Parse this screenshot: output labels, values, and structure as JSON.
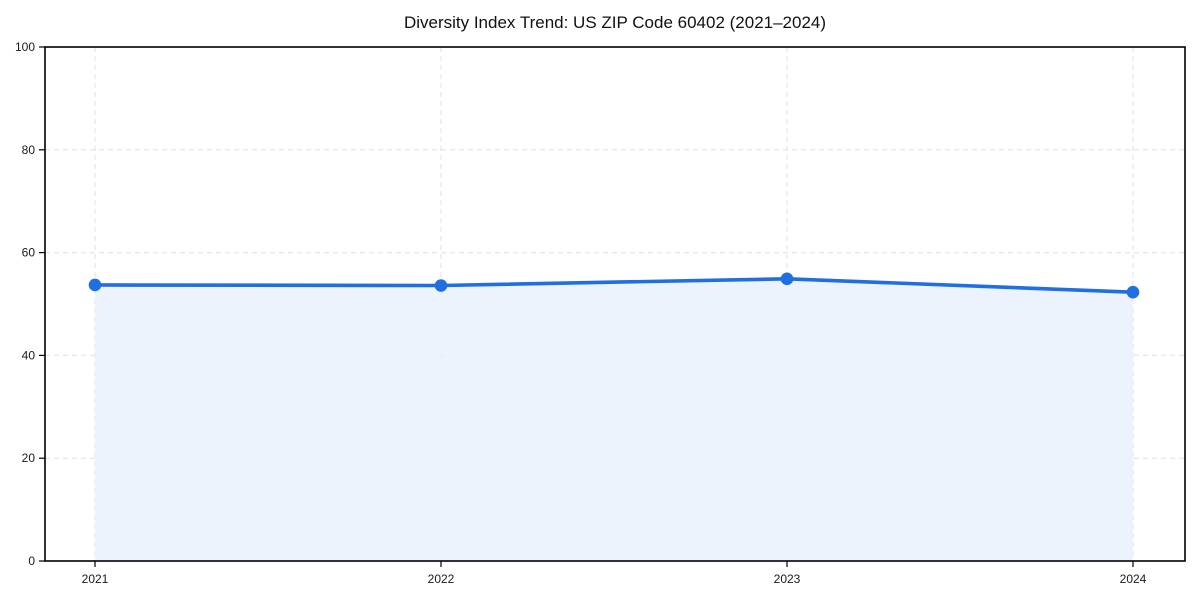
{
  "page": {
    "background_color": "#ffffff"
  },
  "chart_data": {
    "type": "area",
    "title": "Diversity Index Trend: US ZIP Code 60402 (2021–2024)",
    "categories": [
      "2021",
      "2022",
      "2023",
      "2024"
    ],
    "series": [
      {
        "name": "Diversity Index",
        "values": [
          53.7,
          53.6,
          54.9,
          52.3
        ]
      }
    ],
    "xlabel": "",
    "ylabel": "",
    "ylim": [
      0,
      100
    ],
    "yticks": [
      0,
      20,
      40,
      60,
      80,
      100
    ],
    "grid": true,
    "grid_style": "dashed",
    "grid_color": "#e0e0e0",
    "legend_position": "none",
    "line_color": "#1f6fe2",
    "marker_color": "#1f6fe2",
    "fill_color": "#e9f1fc",
    "axis_color": "#000000",
    "title_color": "#111111",
    "tick_label_color": "#1a1a1a",
    "marker": "circle"
  }
}
